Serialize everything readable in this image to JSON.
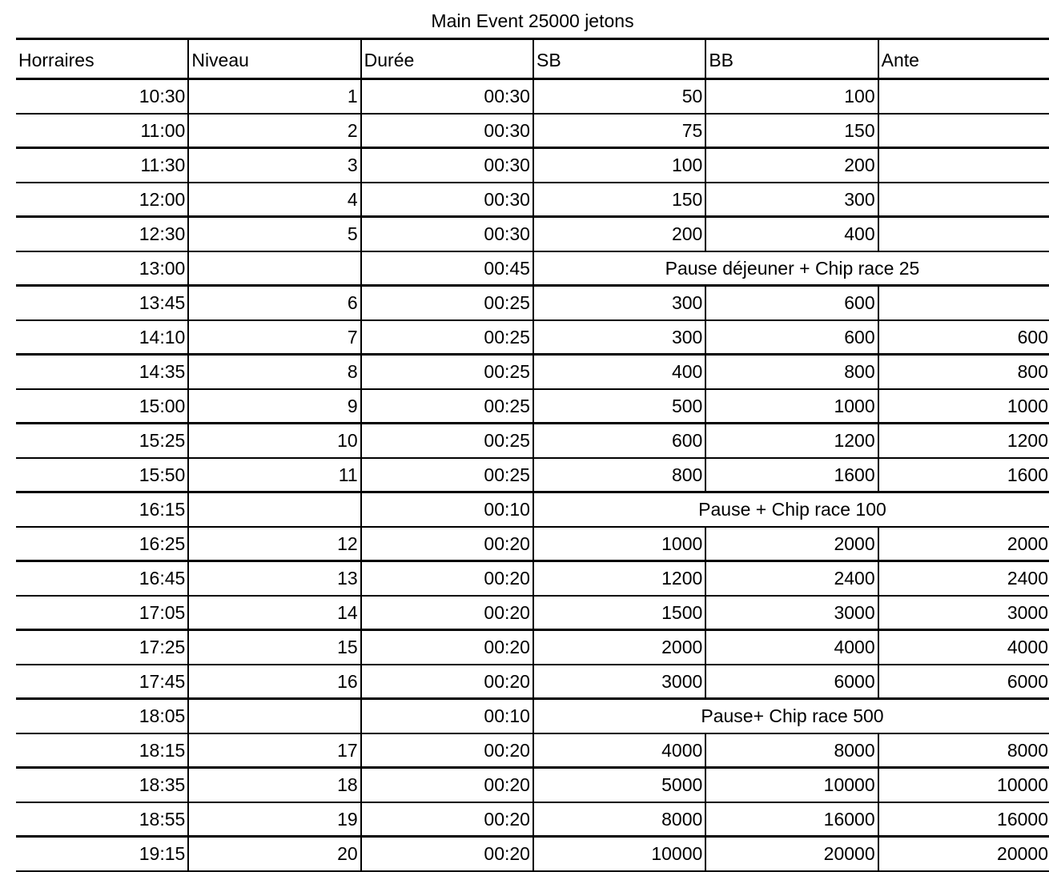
{
  "title": "Main Event 25000 jetons",
  "headers": [
    "Horraires",
    "Niveau",
    "Durée",
    "SB",
    "BB",
    "Ante"
  ],
  "rows": [
    {
      "time": "10:30",
      "level": "1",
      "duration": "00:30",
      "sb": "50",
      "bb": "100",
      "ante": ""
    },
    {
      "time": "11:00",
      "level": "2",
      "duration": "00:30",
      "sb": "75",
      "bb": "150",
      "ante": ""
    },
    {
      "time": "11:30",
      "level": "3",
      "duration": "00:30",
      "sb": "100",
      "bb": "200",
      "ante": ""
    },
    {
      "time": "12:00",
      "level": "4",
      "duration": "00:30",
      "sb": "150",
      "bb": "300",
      "ante": ""
    },
    {
      "time": "12:30",
      "level": "5",
      "duration": "00:30",
      "sb": "200",
      "bb": "400",
      "ante": ""
    },
    {
      "time": "13:00",
      "level": "",
      "duration": "00:45",
      "pause": "Pause déjeuner + Chip race 25"
    },
    {
      "time": "13:45",
      "level": "6",
      "duration": "00:25",
      "sb": "300",
      "bb": "600",
      "ante": ""
    },
    {
      "time": "14:10",
      "level": "7",
      "duration": "00:25",
      "sb": "300",
      "bb": "600",
      "ante": "600"
    },
    {
      "time": "14:35",
      "level": "8",
      "duration": "00:25",
      "sb": "400",
      "bb": "800",
      "ante": "800"
    },
    {
      "time": "15:00",
      "level": "9",
      "duration": "00:25",
      "sb": "500",
      "bb": "1000",
      "ante": "1000"
    },
    {
      "time": "15:25",
      "level": "10",
      "duration": "00:25",
      "sb": "600",
      "bb": "1200",
      "ante": "1200"
    },
    {
      "time": "15:50",
      "level": "11",
      "duration": "00:25",
      "sb": "800",
      "bb": "1600",
      "ante": "1600"
    },
    {
      "time": "16:15",
      "level": "",
      "duration": "00:10",
      "pause": "Pause + Chip race 100"
    },
    {
      "time": "16:25",
      "level": "12",
      "duration": "00:20",
      "sb": "1000",
      "bb": "2000",
      "ante": "2000"
    },
    {
      "time": "16:45",
      "level": "13",
      "duration": "00:20",
      "sb": "1200",
      "bb": "2400",
      "ante": "2400"
    },
    {
      "time": "17:05",
      "level": "14",
      "duration": "00:20",
      "sb": "1500",
      "bb": "3000",
      "ante": "3000"
    },
    {
      "time": "17:25",
      "level": "15",
      "duration": "00:20",
      "sb": "2000",
      "bb": "4000",
      "ante": "4000"
    },
    {
      "time": "17:45",
      "level": "16",
      "duration": "00:20",
      "sb": "3000",
      "bb": "6000",
      "ante": "6000"
    },
    {
      "time": "18:05",
      "level": "",
      "duration": "00:10",
      "pause": "Pause+ Chip race 500"
    },
    {
      "time": "18:15",
      "level": "17",
      "duration": "00:20",
      "sb": "4000",
      "bb": "8000",
      "ante": "8000"
    },
    {
      "time": "18:35",
      "level": "18",
      "duration": "00:20",
      "sb": "5000",
      "bb": "10000",
      "ante": "10000"
    },
    {
      "time": "18:55",
      "level": "19",
      "duration": "00:20",
      "sb": "8000",
      "bb": "16000",
      "ante": "16000"
    },
    {
      "time": "19:15",
      "level": "20",
      "duration": "00:20",
      "sb": "10000",
      "bb": "20000",
      "ante": "20000"
    }
  ]
}
